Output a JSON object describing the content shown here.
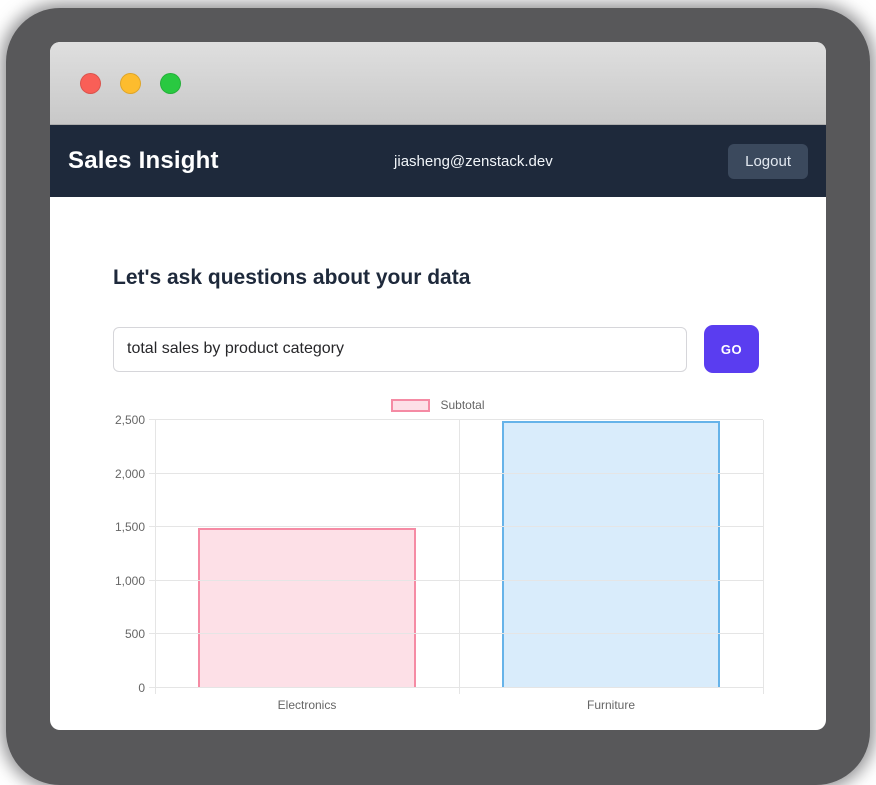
{
  "header": {
    "title": "Sales Insight",
    "user_email": "jiasheng@zenstack.dev",
    "logout_label": "Logout"
  },
  "main": {
    "heading": "Let's ask questions about your data",
    "query": {
      "value": "total sales by product category",
      "go_label": "GO"
    }
  },
  "chart_data": {
    "type": "bar",
    "title": "",
    "legend": "Subtotal",
    "legend_position": "top",
    "categories": [
      "Electronics",
      "Furniture"
    ],
    "series": [
      {
        "name": "Subtotal",
        "values": [
          1490,
          2490
        ]
      }
    ],
    "bar_colors": [
      {
        "fill": "#fde0e7",
        "border": "#f58ba4"
      },
      {
        "fill": "#d9ecfb",
        "border": "#66b3e9"
      }
    ],
    "ylim": [
      0,
      2500
    ],
    "y_ticks": [
      0,
      500,
      1000,
      1500,
      2000,
      2500
    ],
    "y_tick_labels": [
      "0",
      "500",
      "1,000",
      "1,500",
      "2,000",
      "2,500"
    ],
    "grid": true
  },
  "colors": {
    "accent": "#5a3df0",
    "header_bg": "#1e293b",
    "logout_bg": "#3b495d",
    "grid_color": "#e5e5e5",
    "shadow_gray": "#58585a",
    "traffic_red": "#f95f57",
    "traffic_yellow": "#fdbc2e",
    "traffic_green": "#29c941"
  }
}
